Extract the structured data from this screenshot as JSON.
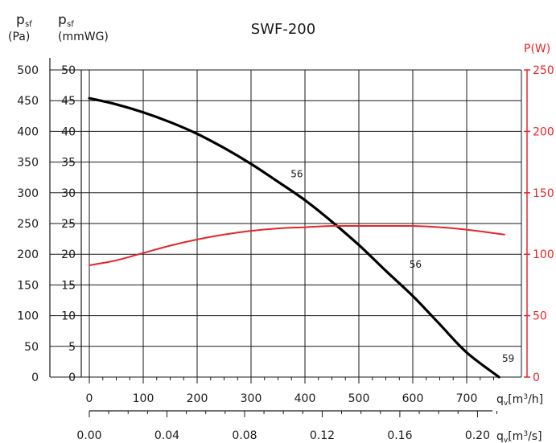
{
  "chart_data": {
    "type": "line",
    "title": "SWF-200",
    "y_left_outer": {
      "label_symbol": "p",
      "label_sub": "sf",
      "unit": "(Pa)",
      "ticks": [
        "500",
        "450",
        "400",
        "350",
        "300",
        "250",
        "200",
        "150",
        "100",
        "50",
        "0"
      ]
    },
    "y_left_inner": {
      "label_symbol": "p",
      "label_sub": "sf",
      "unit": "(mmWG)",
      "ticks": [
        "50",
        "45",
        "40",
        "35",
        "30",
        "25",
        "20",
        "15",
        "10",
        "5",
        "0"
      ]
    },
    "y_right": {
      "label": "P(W)",
      "ticks": [
        "250",
        "200",
        "150",
        "100",
        "50",
        "0"
      ],
      "color": "#e3262b"
    },
    "x_top_axis": {
      "label_symbol": "q",
      "label_sub": "v",
      "unit_pre": "[m",
      "unit_sup": "3",
      "unit_post": "/h]",
      "ticks": [
        "0",
        "100",
        "200",
        "300",
        "400",
        "500",
        "600",
        "700"
      ]
    },
    "x_bottom_axis": {
      "label_symbol": "q",
      "label_sub": "v",
      "unit_pre": "[m",
      "unit_sup": "3",
      "unit_post": "/s]",
      "ticks": [
        "0.00",
        "0.04",
        "0.08",
        "0.12",
        "0.16",
        "0.20"
      ]
    },
    "xlim_m3h": [
      0,
      750
    ],
    "ylim_pa": [
      0,
      500
    ],
    "ylim_w": [
      0,
      250
    ],
    "grid": true,
    "series": [
      {
        "color": "#000000",
        "x": [
          0,
          50,
          100,
          150,
          200,
          250,
          300,
          350,
          400,
          450,
          500,
          550,
          600,
          650,
          700,
          760
        ],
        "y": [
          454,
          444,
          431,
          415,
          396,
          373,
          347,
          318,
          288,
          253,
          215,
          173,
          132,
          86,
          40,
          0
        ]
      },
      {
        "color": "#e3262b",
        "x": [
          0,
          50,
          100,
          150,
          200,
          250,
          300,
          350,
          400,
          450,
          500,
          550,
          600,
          650,
          700,
          770
        ],
        "y": [
          91,
          95,
          101,
          107,
          112,
          116,
          119,
          121,
          122,
          123,
          123,
          123,
          123,
          122,
          120,
          116
        ]
      }
    ],
    "annotations": [
      {
        "text": "56",
        "x": 385,
        "y": 325
      },
      {
        "text": "56",
        "x": 605,
        "y": 178
      },
      {
        "text": "59",
        "x": 777,
        "y": 25
      }
    ]
  }
}
